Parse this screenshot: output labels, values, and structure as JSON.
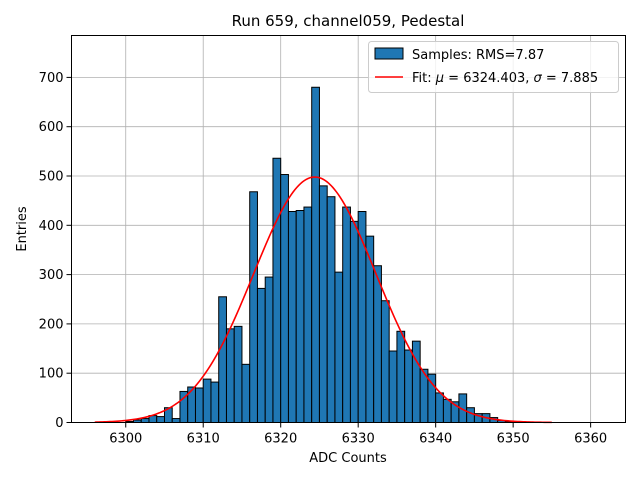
{
  "chart_data": {
    "type": "histogram",
    "title": "Run 659, channel059, Pedestal",
    "xlabel": "ADC Counts",
    "ylabel": "Entries",
    "xlim": [
      6293.0,
      6364.5
    ],
    "ylim": [
      0,
      785
    ],
    "xticks": [
      6300,
      6310,
      6320,
      6330,
      6340,
      6350,
      6360
    ],
    "yticks": [
      0,
      100,
      200,
      300,
      400,
      500,
      600,
      700
    ],
    "grid": true,
    "legend_position": "top-right",
    "bin_start": 6296,
    "bin_width": 1,
    "counts": [
      0,
      0,
      0,
      0,
      2,
      5,
      8,
      14,
      12,
      30,
      8,
      63,
      72,
      70,
      88,
      82,
      255,
      190,
      195,
      118,
      468,
      272,
      295,
      536,
      503,
      428,
      430,
      437,
      680,
      480,
      458,
      305,
      437,
      408,
      428,
      378,
      318,
      247,
      145,
      185,
      147,
      165,
      108,
      98,
      60,
      47,
      42,
      58,
      30,
      18,
      18,
      10,
      4,
      2,
      1,
      0,
      0,
      0,
      0,
      0,
      0,
      0,
      0,
      0,
      0
    ],
    "bar_color": "#1f77b4",
    "fit_color": "#ff0000",
    "fit": {
      "mu": 6324.403,
      "sigma": 7.885,
      "amplitude": 498,
      "x_range": [
        6296,
        6355
      ]
    },
    "series": [
      {
        "name": "Samples",
        "label": "Samples: RMS=7.87",
        "kind": "bars"
      },
      {
        "name": "Fit",
        "label_prefix": "Fit: ",
        "mu_symbol": "μ",
        "mu_text": " = 6324.403, ",
        "sigma_symbol": "σ",
        "sigma_text": " = 7.885",
        "kind": "line"
      }
    ]
  }
}
